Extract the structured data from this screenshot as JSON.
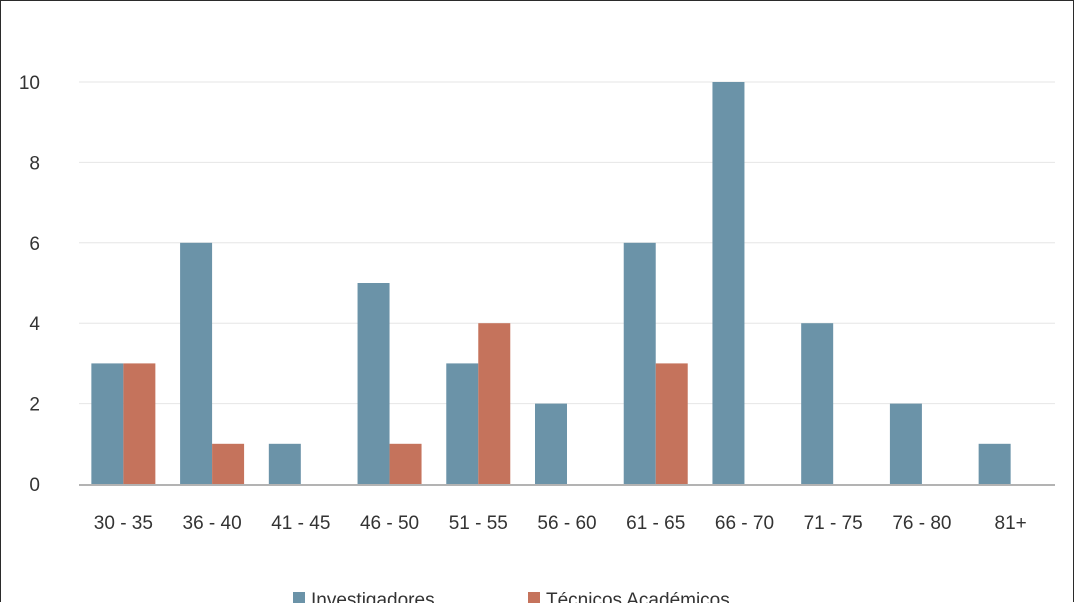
{
  "chart_data": {
    "type": "bar",
    "categories": [
      "30 - 35",
      "36 - 40",
      "41 - 45",
      "46 - 50",
      "51 - 55",
      "56 - 60",
      "61 - 65",
      "66 - 70",
      "71 - 75",
      "76 - 80",
      "81+"
    ],
    "series": [
      {
        "name": "Investigadores",
        "color": "#6b93a8",
        "values": [
          3,
          6,
          1,
          5,
          3,
          2,
          6,
          10,
          4,
          2,
          1
        ]
      },
      {
        "name": "Técnicos Académicos",
        "color": "#c5735c",
        "values": [
          3,
          1,
          0,
          1,
          4,
          0,
          3,
          0,
          0,
          0,
          0
        ]
      }
    ],
    "y_ticks": [
      "0",
      "2",
      "4",
      "6",
      "8",
      "10"
    ],
    "ylim": [
      0,
      10
    ],
    "grid": true,
    "legend_position": "bottom",
    "title": "",
    "xlabel": "",
    "ylabel": ""
  }
}
